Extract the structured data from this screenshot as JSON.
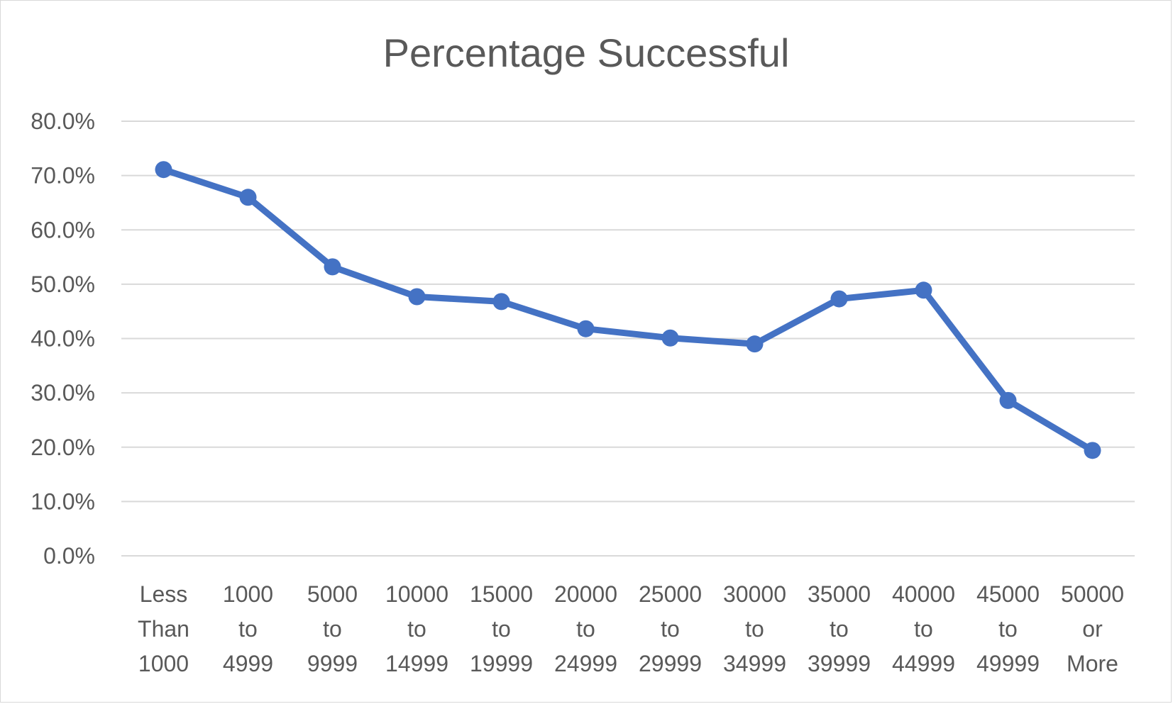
{
  "chart_data": {
    "type": "line",
    "title": "Percentage Successful",
    "xlabel": "",
    "ylabel": "",
    "categories": [
      [
        "Less",
        "Than",
        "1000"
      ],
      [
        "1000",
        "to",
        "4999"
      ],
      [
        "5000",
        "to",
        "9999"
      ],
      [
        "10000",
        "to",
        "14999"
      ],
      [
        "15000",
        "to",
        "19999"
      ],
      [
        "20000",
        "to",
        "24999"
      ],
      [
        "25000",
        "to",
        "29999"
      ],
      [
        "30000",
        "to",
        "34999"
      ],
      [
        "35000",
        "to",
        "39999"
      ],
      [
        "40000",
        "to",
        "44999"
      ],
      [
        "45000",
        "to",
        "49999"
      ],
      [
        "50000",
        "or",
        "More"
      ]
    ],
    "series": [
      {
        "values": [
          71.1,
          66.0,
          53.2,
          47.7,
          46.8,
          41.8,
          40.1,
          39.0,
          47.3,
          48.9,
          28.6,
          19.4
        ],
        "color": "#4472c4",
        "marker": "circle"
      }
    ],
    "ylim": [
      0,
      80
    ],
    "yticks": [
      0,
      10,
      20,
      30,
      40,
      50,
      60,
      70,
      80
    ],
    "ytick_labels": [
      "0.0%",
      "10.0%",
      "20.0%",
      "30.0%",
      "40.0%",
      "50.0%",
      "60.0%",
      "70.0%",
      "80.0%"
    ],
    "grid": true,
    "legend": "none"
  }
}
